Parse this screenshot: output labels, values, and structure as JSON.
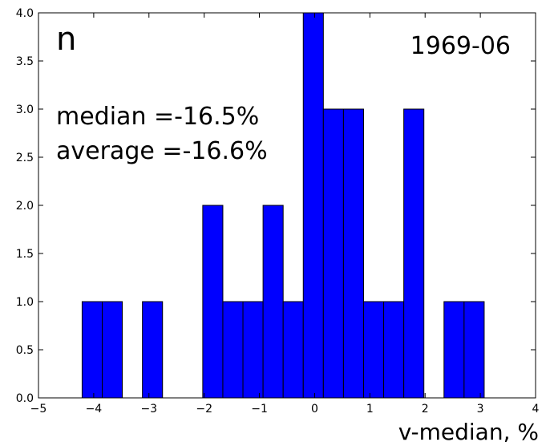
{
  "chart_data": {
    "type": "bar",
    "panel_label": "n",
    "period": "1969-06",
    "annotations": [
      "median =-16.5%",
      "average =-16.6%"
    ],
    "xlabel": "v-median, %",
    "ylabel": "",
    "xlim": [
      -5,
      4
    ],
    "ylim": [
      0,
      4
    ],
    "xticks": [
      "−5",
      "−4",
      "−3",
      "−2",
      "−1",
      "0",
      "1",
      "2",
      "3",
      "4"
    ],
    "yticks": [
      "0.0",
      "0.5",
      "1.0",
      "1.5",
      "2.0",
      "2.5",
      "3.0",
      "3.5",
      "4.0"
    ],
    "grid": false,
    "bar_color": "#0000ff",
    "bin_width": 0.364,
    "bins": [
      {
        "x_start": -4.21,
        "value": 1
      },
      {
        "x_start": -3.846,
        "value": 1
      },
      {
        "x_start": -3.118,
        "value": 1
      },
      {
        "x_start": -2.026,
        "value": 2
      },
      {
        "x_start": -1.662,
        "value": 1
      },
      {
        "x_start": -1.298,
        "value": 1
      },
      {
        "x_start": -0.934,
        "value": 2
      },
      {
        "x_start": -0.57,
        "value": 1
      },
      {
        "x_start": -0.206,
        "value": 4
      },
      {
        "x_start": 0.158,
        "value": 3
      },
      {
        "x_start": 0.522,
        "value": 3
      },
      {
        "x_start": 0.886,
        "value": 1
      },
      {
        "x_start": 1.25,
        "value": 1
      },
      {
        "x_start": 1.614,
        "value": 3
      },
      {
        "x_start": 2.342,
        "value": 1
      },
      {
        "x_start": 2.706,
        "value": 1
      }
    ]
  }
}
